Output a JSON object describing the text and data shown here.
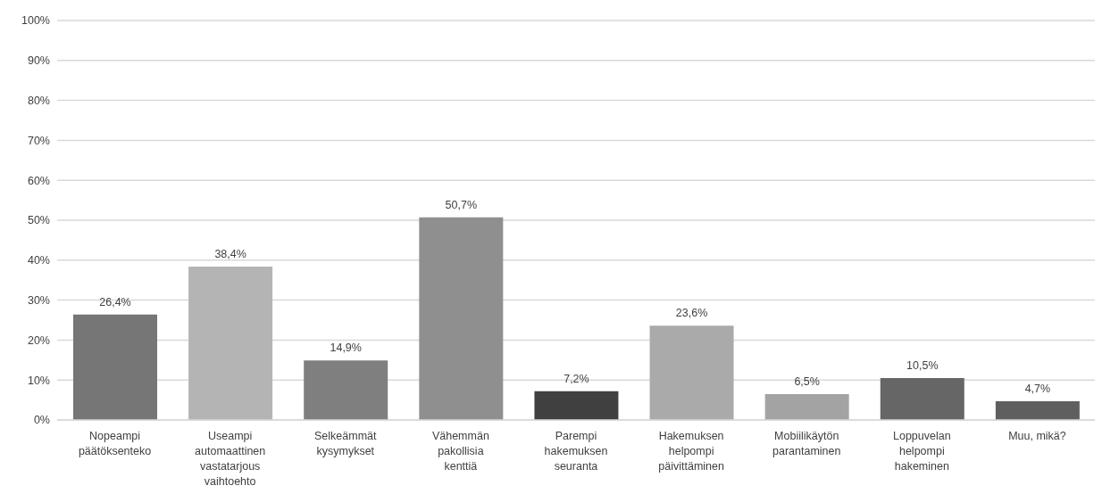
{
  "chart_data": {
    "type": "bar",
    "categories": [
      "Nopeampi päätöksenteko",
      "Useampi automaattinen vastatarjous vaihtoehto",
      "Selkeämmät kysymykset",
      "Vähemmän pakollisia kenttiä",
      "Parempi hakemuksen seuranta",
      "Hakemuksen helpompi päivittäminen",
      "Mobiilikäytön parantaminen",
      "Loppuvelan helpompi hakeminen",
      "Muu, mikä?"
    ],
    "values": [
      26.4,
      38.4,
      14.9,
      50.7,
      7.2,
      23.6,
      6.5,
      10.5,
      4.7
    ],
    "colors": [
      "#767676",
      "#b4b4b4",
      "#7f7f7f",
      "#8f8f8f",
      "#404040",
      "#aaaaaa",
      "#a3a3a3",
      "#666666",
      "#5f5f5f"
    ],
    "value_labels": [
      "26,4%",
      "38,4%",
      "14,9%",
      "50,7%",
      "7,2%",
      "23,6%",
      "6,5%",
      "10,5%",
      "4,7%"
    ],
    "ylim": [
      0,
      100
    ],
    "yticks": [
      {
        "value": 0,
        "label": "0%"
      },
      {
        "value": 10,
        "label": "10%"
      },
      {
        "value": 20,
        "label": "20%"
      },
      {
        "value": 30,
        "label": "30%"
      },
      {
        "value": 40,
        "label": "40%"
      },
      {
        "value": 50,
        "label": "50%"
      },
      {
        "value": 60,
        "label": "60%"
      },
      {
        "value": 70,
        "label": "70%"
      },
      {
        "value": 80,
        "label": "80%"
      },
      {
        "value": 90,
        "label": "90%"
      },
      {
        "value": 100,
        "label": "100%"
      }
    ],
    "grid": "y"
  }
}
